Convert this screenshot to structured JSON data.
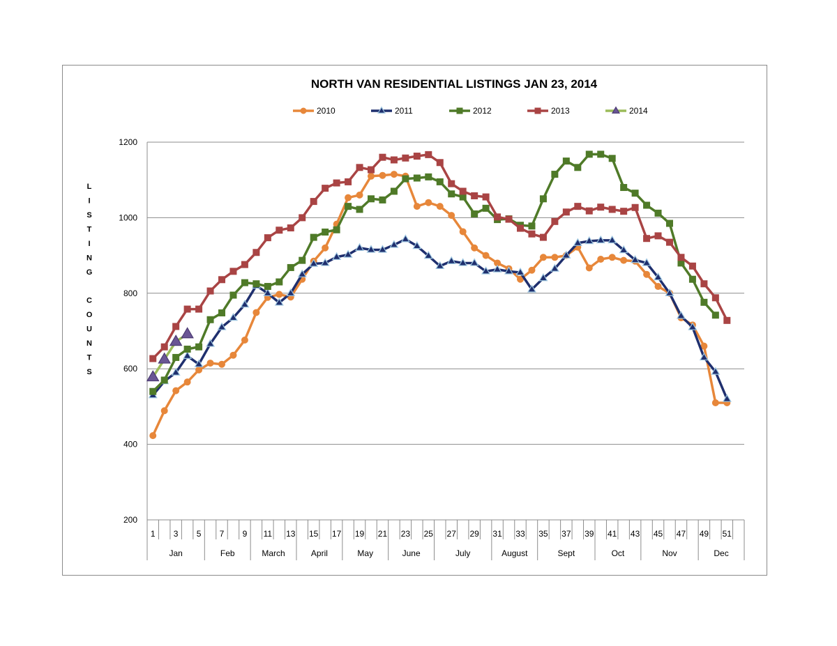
{
  "chart_data": {
    "type": "line",
    "title": "NORTH VAN RESIDENTIAL LISTINGS JAN 23, 2014",
    "ylabel": "LISTING COUNTS",
    "xlabel": "",
    "ylim": [
      200,
      1200
    ],
    "yticks": [
      200,
      400,
      600,
      800,
      1000,
      1200
    ],
    "xlim": [
      1,
      52
    ],
    "xticks": [
      "1",
      "3",
      "5",
      "7",
      "9",
      "11",
      "13",
      "15",
      "17",
      "19",
      "21",
      "23",
      "25",
      "27",
      "29",
      "31",
      "33",
      "35",
      "37",
      "39",
      "41",
      "43",
      "45",
      "47",
      "49",
      "51"
    ],
    "months": [
      {
        "label": "Jan",
        "start": 1,
        "end": 5
      },
      {
        "label": "Feb",
        "start": 6,
        "end": 9
      },
      {
        "label": "March",
        "start": 10,
        "end": 13
      },
      {
        "label": "April",
        "start": 14,
        "end": 17
      },
      {
        "label": "May",
        "start": 18,
        "end": 21
      },
      {
        "label": "June",
        "start": 22,
        "end": 25
      },
      {
        "label": "July",
        "start": 26,
        "end": 30
      },
      {
        "label": "August",
        "start": 31,
        "end": 34
      },
      {
        "label": "Sept",
        "start": 35,
        "end": 39
      },
      {
        "label": "Oct",
        "start": 40,
        "end": 43
      },
      {
        "label": "Nov",
        "start": 44,
        "end": 48
      },
      {
        "label": "Dec",
        "start": 49,
        "end": 52
      }
    ],
    "grid": true,
    "legend_position": "top",
    "series": [
      {
        "name": "2010",
        "color": "#E7873A",
        "marker": "circle",
        "values": [
          423,
          489,
          542,
          565,
          597,
          615,
          612,
          636,
          676,
          749,
          789,
          797,
          790,
          837,
          885,
          920,
          983,
          1053,
          1060,
          1110,
          1112,
          1115,
          1110,
          1030,
          1040,
          1030,
          1006,
          963,
          920,
          900,
          880,
          865,
          837,
          861,
          895,
          895,
          900,
          922,
          867,
          890,
          895,
          887,
          885,
          850,
          818,
          800,
          735,
          716,
          660,
          510,
          510
        ]
      },
      {
        "name": "2011",
        "color": "#1F2F6E",
        "marker": "triangle",
        "values": [
          530,
          567,
          590,
          634,
          612,
          666,
          710,
          735,
          770,
          820,
          800,
          775,
          800,
          850,
          878,
          880,
          896,
          902,
          920,
          915,
          915,
          928,
          943,
          925,
          899,
          872,
          885,
          880,
          880,
          858,
          863,
          858,
          855,
          810,
          840,
          865,
          900,
          933,
          938,
          940,
          940,
          914,
          888,
          880,
          842,
          800,
          740,
          710,
          630,
          592,
          520
        ]
      },
      {
        "name": "2012",
        "color": "#4F7A28",
        "marker": "square",
        "values": [
          540,
          570,
          630,
          652,
          658,
          730,
          748,
          795,
          828,
          825,
          818,
          830,
          868,
          887,
          948,
          962,
          968,
          1030,
          1022,
          1050,
          1047,
          1070,
          1103,
          1105,
          1108,
          1095,
          1063,
          1055,
          1010,
          1025,
          995,
          997,
          980,
          978,
          1050,
          1115,
          1150,
          1133,
          1168,
          1168,
          1157,
          1080,
          1065,
          1033,
          1012,
          985,
          880,
          837,
          776,
          742,
          null
        ]
      },
      {
        "name": "2013",
        "color": "#A94444",
        "marker": "square",
        "values": [
          627,
          658,
          712,
          758,
          758,
          806,
          836,
          858,
          876,
          908,
          947,
          967,
          973,
          1000,
          1043,
          1078,
          1092,
          1095,
          1133,
          1127,
          1160,
          1153,
          1158,
          1163,
          1167,
          1146,
          1090,
          1070,
          1058,
          1055,
          1002,
          996,
          972,
          957,
          948,
          990,
          1015,
          1030,
          1018,
          1028,
          1022,
          1017,
          1027,
          945,
          952,
          935,
          895,
          872,
          825,
          788,
          728
        ]
      },
      {
        "name": "2014",
        "color": "#9BBB59",
        "marker": "triangle",
        "marker_color": "#6A5694",
        "values": [
          578,
          625,
          672,
          692
        ]
      }
    ]
  }
}
